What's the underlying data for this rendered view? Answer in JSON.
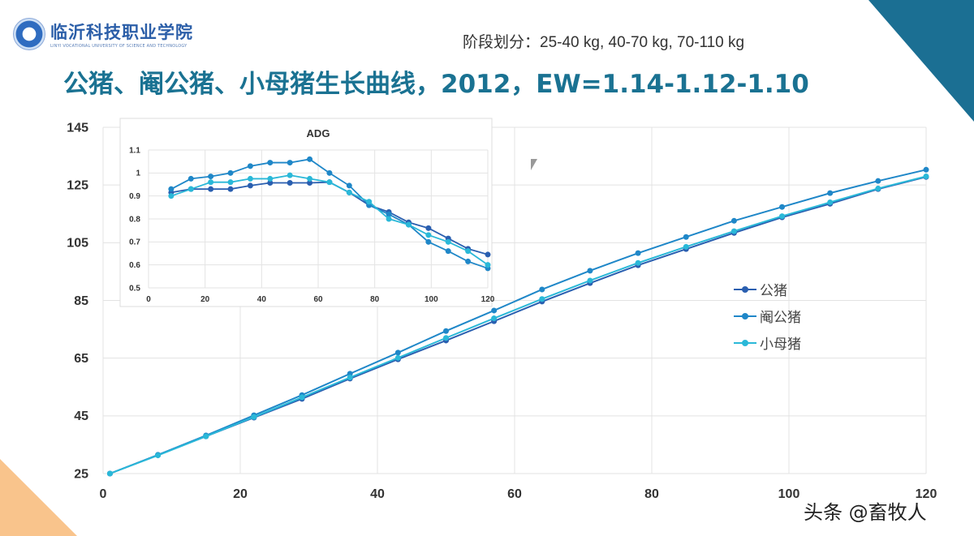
{
  "logo": {
    "name": "临沂科技职业学院",
    "subtitle": "LINYI VOCATIONAL UNIVERSITY OF SCIENCE AND TECHNOLOGY"
  },
  "stage_note": "阶段划分：25-40 kg, 40-70 kg, 70-110 kg",
  "title": "公猪、阉公猪、小母猪生长曲线，2012，EW=1.14-1.12-1.10",
  "watermark": "头条 @畜牧人",
  "chart_data": [
    {
      "type": "line",
      "title": "",
      "xlim": [
        0,
        120
      ],
      "ylim": [
        25,
        145
      ],
      "xticks": [
        0,
        20,
        40,
        60,
        80,
        100,
        120
      ],
      "yticks": [
        25,
        45,
        65,
        85,
        105,
        125,
        145
      ],
      "grid": true,
      "legend": "right-middle",
      "x": [
        1,
        8,
        15,
        22,
        29,
        36,
        43,
        50,
        57,
        64,
        71,
        78,
        85,
        92,
        99,
        106,
        113,
        120
      ],
      "series": [
        {
          "name": "公猪",
          "color": "#2a5fb0",
          "values": [
            25,
            31.4,
            37.9,
            44.4,
            50.9,
            57.9,
            64.6,
            71.1,
            77.8,
            84.6,
            91.0,
            97.2,
            102.8,
            108.4,
            113.8,
            118.5,
            123.6,
            127.8
          ]
        },
        {
          "name": "阉公猪",
          "color": "#1f87c8",
          "values": [
            25,
            31.5,
            38.2,
            45.2,
            52.2,
            59.6,
            66.9,
            74.4,
            81.5,
            88.8,
            95.3,
            101.4,
            107.0,
            112.6,
            117.4,
            122.2,
            126.4,
            130.3
          ]
        },
        {
          "name": "小母猪",
          "color": "#2ab8d8",
          "values": [
            25,
            31.3,
            37.9,
            44.6,
            51.4,
            58.3,
            65.1,
            72.0,
            78.8,
            85.5,
            91.9,
            98.0,
            103.6,
            109.0,
            114.2,
            119.0,
            123.8,
            128.0
          ]
        }
      ]
    },
    {
      "type": "line",
      "title": "ADG",
      "xlim": [
        0,
        120
      ],
      "ylim": [
        0.5,
        1.1
      ],
      "xticks": [
        0,
        20,
        40,
        60,
        80,
        100,
        120
      ],
      "yticks": [
        0.5,
        0.6,
        0.7,
        0.8,
        0.9,
        1,
        1.1
      ],
      "grid": true,
      "x": [
        8,
        15,
        22,
        29,
        36,
        43,
        50,
        57,
        64,
        71,
        78,
        85,
        92,
        99,
        106,
        113,
        120
      ],
      "series": [
        {
          "name": "公猪",
          "color": "#2a5fb0",
          "values": [
            0.915,
            0.93,
            0.93,
            0.93,
            0.945,
            0.957,
            0.957,
            0.957,
            0.96,
            0.915,
            0.86,
            0.83,
            0.785,
            0.76,
            0.715,
            0.67,
            0.645
          ]
        },
        {
          "name": "阉公猪",
          "color": "#1f87c8",
          "values": [
            0.93,
            0.975,
            0.985,
            1.0,
            1.03,
            1.045,
            1.045,
            1.06,
            1.0,
            0.945,
            0.86,
            0.82,
            0.775,
            0.7,
            0.66,
            0.615,
            0.585
          ]
        },
        {
          "name": "小母猪",
          "color": "#2ab8d8",
          "values": [
            0.9,
            0.93,
            0.96,
            0.96,
            0.975,
            0.975,
            0.99,
            0.975,
            0.96,
            0.915,
            0.875,
            0.8,
            0.775,
            0.73,
            0.7,
            0.66,
            0.6
          ]
        }
      ]
    }
  ]
}
